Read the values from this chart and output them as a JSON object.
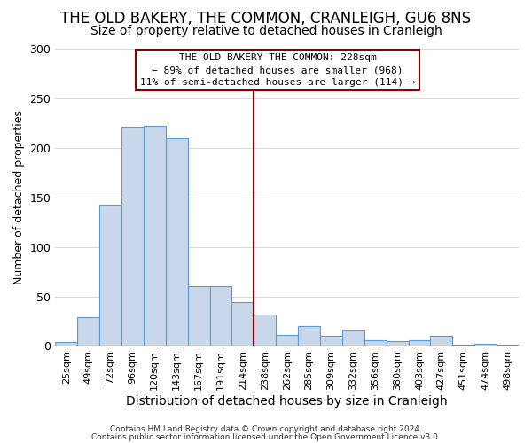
{
  "title": "THE OLD BAKERY, THE COMMON, CRANLEIGH, GU6 8NS",
  "subtitle": "Size of property relative to detached houses in Cranleigh",
  "xlabel": "Distribution of detached houses by size in Cranleigh",
  "ylabel": "Number of detached properties",
  "bar_labels": [
    "25sqm",
    "49sqm",
    "72sqm",
    "96sqm",
    "120sqm",
    "143sqm",
    "167sqm",
    "191sqm",
    "214sqm",
    "238sqm",
    "262sqm",
    "285sqm",
    "309sqm",
    "332sqm",
    "356sqm",
    "380sqm",
    "403sqm",
    "427sqm",
    "451sqm",
    "474sqm",
    "498sqm"
  ],
  "bar_values": [
    4,
    29,
    143,
    221,
    222,
    210,
    60,
    60,
    44,
    32,
    11,
    20,
    10,
    16,
    6,
    5,
    6,
    10,
    1,
    2,
    1
  ],
  "bar_color": "#c8d8ea",
  "bar_edge_color": "#5b9bd5",
  "vline_color": "#8b0000",
  "annotation_text": "THE OLD BAKERY THE COMMON: 228sqm\n← 89% of detached houses are smaller (968)\n11% of semi-detached houses are larger (114) →",
  "annotation_box_color": "#8b0000",
  "bg_color": "#ffffff",
  "grid_color": "#d0dce8",
  "ylim": [
    0,
    300
  ],
  "yticks": [
    0,
    50,
    100,
    150,
    200,
    250,
    300
  ],
  "footer_line1": "Contains HM Land Registry data © Crown copyright and database right 2024.",
  "footer_line2": "Contains public sector information licensed under the Open Government Licence v3.0.",
  "title_fontsize": 12,
  "subtitle_fontsize": 10,
  "annotation_fontsize": 8,
  "tick_fontsize": 8,
  "ylabel_fontsize": 9,
  "xlabel_fontsize": 10
}
